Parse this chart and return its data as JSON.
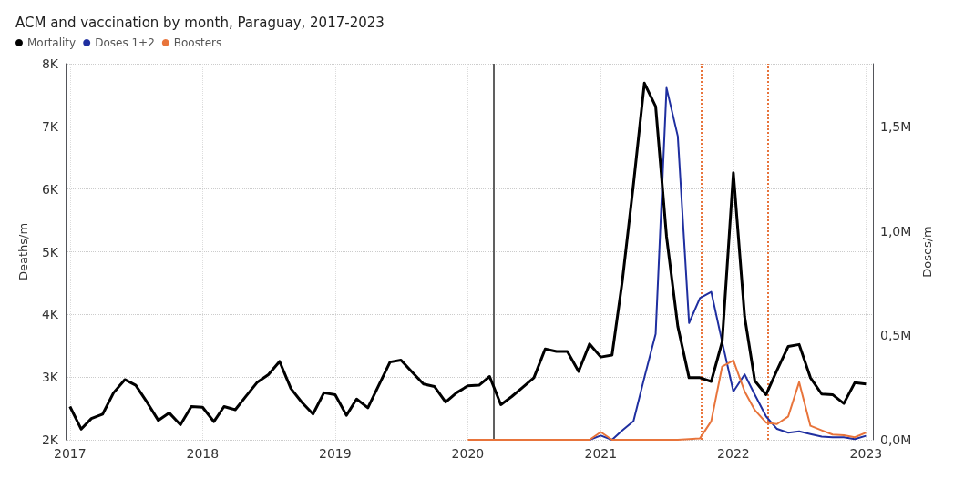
{
  "chart_data": {
    "type": "line",
    "title": "ACM and vaccination by month, Paraguay, 2017-2023",
    "ylabel": "Deaths/m",
    "y2label": "Doses/m",
    "xlim": [
      "2016-12-20",
      "2023-01-20"
    ],
    "xticks": [
      "2017",
      "2018",
      "2019",
      "2020",
      "2021",
      "2022",
      "2023"
    ],
    "ylim": [
      2000,
      8000
    ],
    "yticks": [
      {
        "value": 2000,
        "label": "2K"
      },
      {
        "value": 3000,
        "label": "3K"
      },
      {
        "value": 4000,
        "label": "4K"
      },
      {
        "value": 5000,
        "label": "5K"
      },
      {
        "value": 6000,
        "label": "6K"
      },
      {
        "value": 7000,
        "label": "7K"
      },
      {
        "value": 8000,
        "label": "8K"
      }
    ],
    "y2lim": [
      0,
      1800000
    ],
    "y2ticks": [
      {
        "value": 0,
        "label": "0,0M"
      },
      {
        "value": 500000,
        "label": "0,5M"
      },
      {
        "value": 1000000,
        "label": "1,0M"
      },
      {
        "value": 1500000,
        "label": "1,5M"
      }
    ],
    "grid": true,
    "legend": "top left",
    "marker": "none",
    "line_style": "solid",
    "series": [
      {
        "name": "Mortality",
        "color": "#000000",
        "x": [
          "2017-01",
          "2017-02",
          "2017-03",
          "2017-04",
          "2017-05",
          "2017-06",
          "2017-07",
          "2017-08",
          "2017-09",
          "2017-10",
          "2017-11",
          "2017-12",
          "2018-01",
          "2018-02",
          "2018-03",
          "2018-04",
          "2018-05",
          "2018-06",
          "2018-07",
          "2018-08",
          "2018-09",
          "2018-10",
          "2018-11",
          "2018-12",
          "2019-01",
          "2019-02",
          "2019-03",
          "2019-04",
          "2019-05",
          "2019-06",
          "2019-07",
          "2019-08",
          "2019-09",
          "2019-10",
          "2019-11",
          "2019-12",
          "2020-01",
          "2020-02",
          "2020-03",
          "2020-04",
          "2020-05",
          "2020-06",
          "2020-07",
          "2020-08",
          "2020-09",
          "2020-10",
          "2020-11",
          "2020-12",
          "2021-01",
          "2021-02",
          "2021-03",
          "2021-04",
          "2021-05",
          "2021-06",
          "2021-07",
          "2021-08",
          "2021-09",
          "2021-10",
          "2021-11",
          "2021-12",
          "2022-01",
          "2022-02",
          "2022-03",
          "2022-04",
          "2022-05",
          "2022-06",
          "2022-07",
          "2022-08",
          "2022-09",
          "2022-10",
          "2022-11",
          "2022-12",
          "2023-01"
        ],
        "values": [
          2530,
          2170,
          2340,
          2410,
          2750,
          2960,
          2870,
          2600,
          2310,
          2430,
          2240,
          2530,
          2520,
          2290,
          2530,
          2480,
          2700,
          2920,
          3040,
          3250,
          2820,
          2600,
          2410,
          2750,
          2720,
          2390,
          2650,
          2510,
          2870,
          3240,
          3270,
          3080,
          2890,
          2850,
          2600,
          2750,
          2860,
          2870,
          3010,
          2560,
          2690,
          2840,
          2990,
          3450,
          3410,
          3410,
          3090,
          3530,
          3320,
          3350,
          4520,
          6080,
          7690,
          7320,
          5240,
          3810,
          2990,
          2990,
          2930,
          3560,
          6260,
          3960,
          2940,
          2720,
          3110,
          3490,
          3520,
          2990,
          2730,
          2720,
          2580,
          2910,
          2890
        ]
      },
      {
        "name": "Doses 1+2",
        "color": "#1f2fa0",
        "axis": "y2",
        "x": [
          "2020-12",
          "2021-01",
          "2021-02",
          "2021-03",
          "2021-04",
          "2021-05",
          "2021-06",
          "2021-07",
          "2021-08",
          "2021-09",
          "2021-10",
          "2021-11",
          "2021-12",
          "2022-01",
          "2022-02",
          "2022-03",
          "2022-04",
          "2022-05",
          "2022-06",
          "2022-07",
          "2022-08",
          "2022-09",
          "2022-10",
          "2022-11",
          "2022-12",
          "2023-01"
        ],
        "values": [
          0,
          20000,
          0,
          45000,
          89000,
          298000,
          507000,
          1684000,
          1453000,
          559000,
          678000,
          708000,
          469000,
          231000,
          313000,
          216000,
          112000,
          52000,
          34000,
          40000,
          27000,
          15000,
          12000,
          12000,
          3000,
          19000
        ]
      },
      {
        "name": "Boosters",
        "color": "#e8743b",
        "axis": "y2",
        "x": [
          "2020-01",
          "2020-02",
          "2020-03",
          "2020-04",
          "2020-05",
          "2020-06",
          "2020-07",
          "2020-08",
          "2020-09",
          "2020-10",
          "2020-11",
          "2020-12",
          "2021-01",
          "2021-02",
          "2021-03",
          "2021-04",
          "2021-05",
          "2021-06",
          "2021-07",
          "2021-08",
          "2021-09",
          "2021-10",
          "2021-11",
          "2021-12",
          "2022-01",
          "2022-02",
          "2022-03",
          "2022-04",
          "2022-05",
          "2022-06",
          "2022-07",
          "2022-08",
          "2022-09",
          "2022-10",
          "2022-11",
          "2022-12",
          "2023-01"
        ],
        "values": [
          0,
          0,
          0,
          0,
          0,
          0,
          0,
          0,
          0,
          0,
          0,
          0,
          37000,
          0,
          0,
          0,
          0,
          0,
          0,
          0,
          3000,
          7000,
          89000,
          350000,
          380000,
          231000,
          142000,
          82000,
          75000,
          112000,
          276000,
          67000,
          45000,
          25000,
          22000,
          12000,
          34000
        ]
      }
    ],
    "ref_lines": [
      {
        "axis": "x",
        "value": "2020-03-11",
        "color": "#606060",
        "line_style": "solid"
      },
      {
        "axis": "x",
        "value": "2021-10-05",
        "color": "#e8743b",
        "line_style": "dotted"
      },
      {
        "axis": "x",
        "value": "2022-04-07",
        "color": "#e8743b",
        "line_style": "dotted"
      }
    ]
  }
}
